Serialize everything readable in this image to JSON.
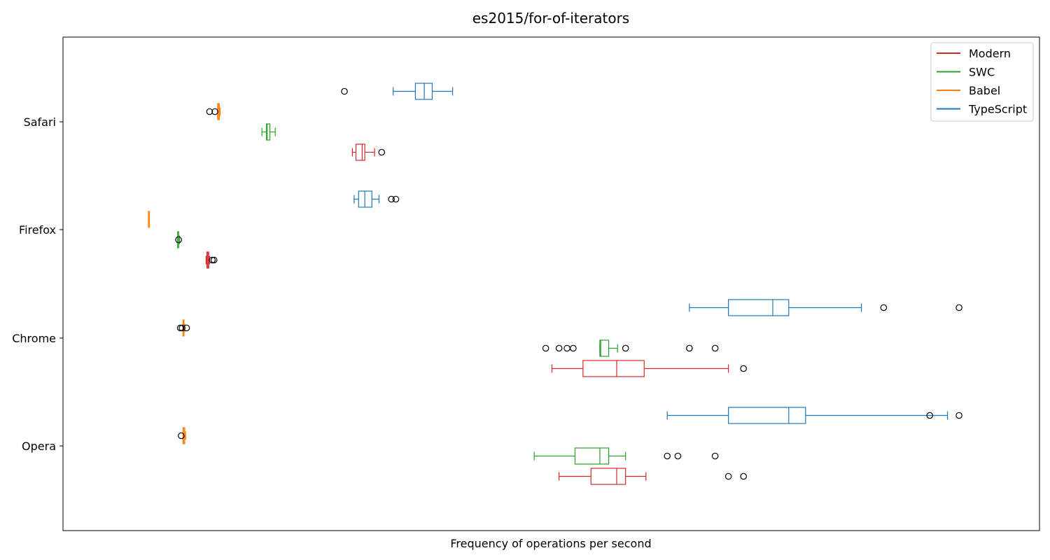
{
  "chart_data": {
    "type": "boxplot",
    "orientation": "horizontal",
    "title": "es2015/for-of-iterators",
    "xlabel": "Frequency of operations per second",
    "ylabel": "",
    "x_ticks_shown": false,
    "grid": false,
    "legend_position": "top-right",
    "xlim": [
      0,
      100
    ],
    "categories": [
      "Opera",
      "Chrome",
      "Firefox",
      "Safari"
    ],
    "series": [
      {
        "name": "Modern",
        "color": "#d62728",
        "boxes": [
          {
            "category": "Opera",
            "whisker_low": 50.8,
            "q1": 54.4,
            "median": 57.3,
            "q3": 58.3,
            "whisker_high": 60.6,
            "outliers": [
              69.9,
              71.6
            ]
          },
          {
            "category": "Chrome",
            "whisker_low": 50.0,
            "q1": 53.5,
            "median": 57.3,
            "q3": 60.4,
            "whisker_high": 69.9,
            "outliers": [
              71.6
            ]
          },
          {
            "category": "Firefox",
            "whisker_low": 11.0,
            "q1": 11.1,
            "median": 11.2,
            "q3": 11.3,
            "whisker_high": 11.4,
            "outliers": [
              11.7,
              11.9
            ]
          },
          {
            "category": "Safari",
            "whisker_low": 27.5,
            "q1": 27.9,
            "median": 28.6,
            "q3": 28.9,
            "whisker_high": 30.0,
            "outliers": [
              30.8
            ]
          }
        ]
      },
      {
        "name": "SWC",
        "color": "#2ca02c",
        "boxes": [
          {
            "category": "Opera",
            "whisker_low": 48.0,
            "q1": 52.6,
            "median": 55.4,
            "q3": 56.4,
            "whisker_high": 58.3,
            "outliers": [
              63.0,
              64.2,
              68.4
            ]
          },
          {
            "category": "Chrome",
            "whisker_low": 55.4,
            "q1": 55.4,
            "median": 55.5,
            "q3": 56.4,
            "whisker_high": 57.4,
            "outliers": [
              49.3,
              50.8,
              51.7,
              52.4,
              58.3,
              65.5,
              68.4
            ]
          },
          {
            "category": "Firefox",
            "whisker_low": 7.8,
            "q1": 7.8,
            "median": 7.8,
            "q3": 7.9,
            "whisker_high": 8.0,
            "outliers": [
              7.9
            ]
          },
          {
            "category": "Safari",
            "whisker_low": 17.3,
            "q1": 17.8,
            "median": 17.9,
            "q3": 18.2,
            "whisker_high": 18.8,
            "outliers": []
          }
        ]
      },
      {
        "name": "Babel",
        "color": "#ff7f0e",
        "boxes": [
          {
            "category": "Opera",
            "whisker_low": 8.4,
            "q1": 8.4,
            "median": 8.5,
            "q3": 8.6,
            "whisker_high": 8.7,
            "outliers": [
              8.2
            ]
          },
          {
            "category": "Chrome",
            "whisker_low": 8.4,
            "q1": 8.4,
            "median": 8.5,
            "q3": 8.5,
            "whisker_high": 8.6,
            "outliers": [
              8.1,
              8.3,
              8.8
            ]
          },
          {
            "category": "Firefox",
            "whisker_low": 4.5,
            "q1": 4.5,
            "median": 4.6,
            "q3": 4.6,
            "whisker_high": 4.6,
            "outliers": []
          },
          {
            "category": "Safari",
            "whisker_low": 12.3,
            "q1": 12.3,
            "median": 12.4,
            "q3": 12.5,
            "whisker_high": 12.6,
            "outliers": [
              11.4,
              12.0
            ]
          }
        ]
      },
      {
        "name": "TypeScript",
        "color": "#1f77b4",
        "boxes": [
          {
            "category": "Opera",
            "whisker_low": 63.0,
            "q1": 69.9,
            "median": 76.7,
            "q3": 78.6,
            "whisker_high": 94.6,
            "outliers": [
              92.6,
              95.9
            ]
          },
          {
            "category": "Chrome",
            "whisker_low": 65.5,
            "q1": 69.9,
            "median": 74.9,
            "q3": 76.7,
            "whisker_high": 84.9,
            "outliers": [
              87.4,
              95.9
            ]
          },
          {
            "category": "Firefox",
            "whisker_low": 27.7,
            "q1": 28.2,
            "median": 28.9,
            "q3": 29.7,
            "whisker_high": 30.5,
            "outliers": [
              31.9,
              32.4
            ]
          },
          {
            "category": "Safari",
            "whisker_low": 32.1,
            "q1": 34.6,
            "median": 35.6,
            "q3": 36.5,
            "whisker_high": 38.8,
            "outliers": [
              26.6
            ]
          }
        ]
      }
    ],
    "legend": [
      {
        "name": "Modern",
        "color": "#d62728"
      },
      {
        "name": "SWC",
        "color": "#2ca02c"
      },
      {
        "name": "Babel",
        "color": "#ff7f0e"
      },
      {
        "name": "TypeScript",
        "color": "#1f77b4"
      }
    ]
  }
}
